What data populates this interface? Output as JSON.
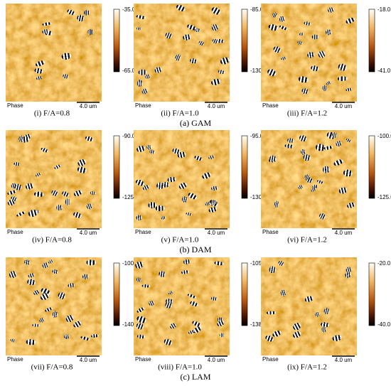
{
  "rows": [
    {
      "caption": "(a) GAM",
      "panels": [
        {
          "caption": "(i) F/A=0.8",
          "phase_label": "Phase",
          "scale_label": "4.0 um",
          "cbar_max": "-35.0 deg",
          "cbar_min": "-65.0 deg"
        },
        {
          "caption": "(ii) F/A=1.0",
          "phase_label": "Phase",
          "scale_label": "4.0 um",
          "cbar_max": "-85.0 deg",
          "cbar_min": "-130.0 deg"
        },
        {
          "caption": "(iii) F/A=1.2",
          "phase_label": "Phase",
          "scale_label": "4.0 um",
          "cbar_max": "-18.0 deg",
          "cbar_min": "-41.0 deg"
        }
      ]
    },
    {
      "caption": "(b) DAM",
      "panels": [
        {
          "caption": "(iv) F/A=0.8",
          "phase_label": "Phase",
          "scale_label": "4.0 um",
          "cbar_max": "-90.0 deg",
          "cbar_min": "-125.0 deg"
        },
        {
          "caption": "(v) F/A=1.0",
          "phase_label": "Phase",
          "scale_label": "4.0 um",
          "cbar_max": "-95.0 deg",
          "cbar_min": "-130.0 deg"
        },
        {
          "caption": "(vi) F/A=1.2",
          "phase_label": "Phase",
          "scale_label": "4.0 um",
          "cbar_max": "-100.0 deg",
          "cbar_min": "-125.0 deg"
        }
      ]
    },
    {
      "caption": "(c) LAM",
      "panels": [
        {
          "caption": "(vii) F/A=0.8",
          "phase_label": "Phase",
          "scale_label": "4.0 um",
          "cbar_max": "-100.0 deg",
          "cbar_min": "-140.0 deg"
        },
        {
          "caption": "(viii) F/A=1.0",
          "phase_label": "Phase",
          "scale_label": "4.0 um",
          "cbar_max": "-105.0 deg",
          "cbar_min": "-138.0 deg"
        },
        {
          "caption": "(ix) F/A=1.2",
          "phase_label": "Phase",
          "scale_label": "4.0 um",
          "cbar_max": "-20.0 deg",
          "cbar_min": "-40.0 deg"
        }
      ]
    }
  ]
}
